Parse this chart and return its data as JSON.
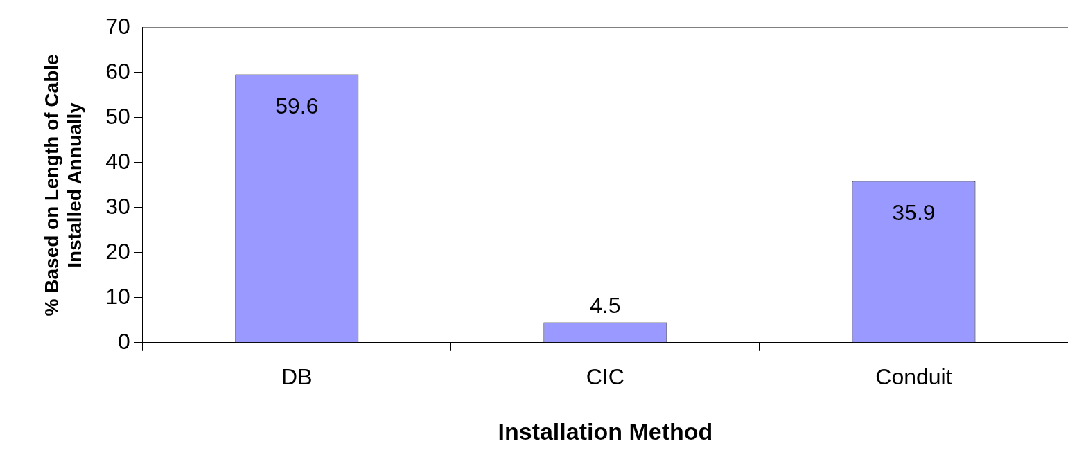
{
  "chart_data": {
    "type": "bar",
    "xlabel": "Installation Method",
    "ylabel": "% Based on Length of Cable\nInstalled Annually",
    "categories": [
      "DB",
      "CIC",
      "Conduit"
    ],
    "values": [
      59.6,
      4.5,
      35.9
    ],
    "color": "#9999ff",
    "ylim": [
      0,
      70
    ],
    "yticks": [
      0,
      10,
      20,
      30,
      40,
      50,
      60,
      70
    ],
    "grid": false,
    "legend": false,
    "data_labels": true
  }
}
